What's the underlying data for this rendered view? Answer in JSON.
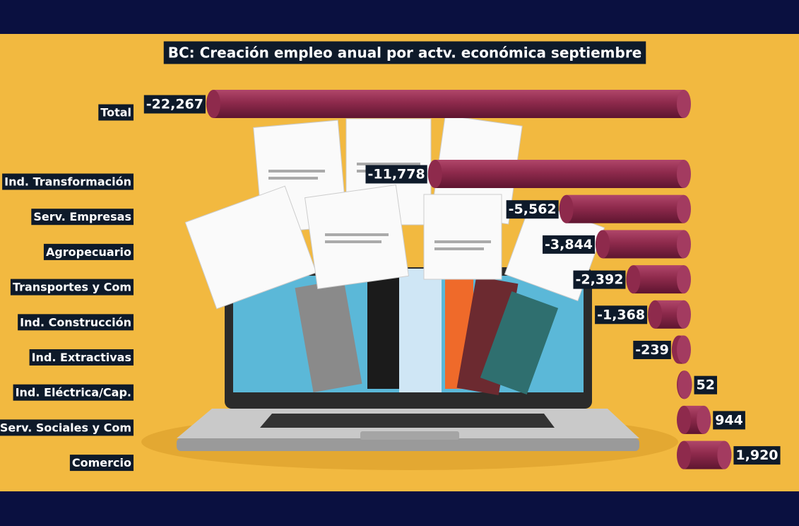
{
  "chart_data": {
    "type": "bar",
    "orientation": "horizontal",
    "title": "BC: Creación empleo anual por actv. económica septiembre",
    "categories": [
      "Total",
      "Ind. Transformación",
      "Serv. Empresas",
      "Agropecuario",
      "Transportes y Com",
      "Ind. Construcción",
      "Ind. Extractivas",
      "Ind. Eléctrica/Cap.",
      "Serv. Sociales y Com",
      "Comercio"
    ],
    "values": [
      -22267,
      -11778,
      -5562,
      -3844,
      -2392,
      -1368,
      -239,
      52,
      944,
      1920
    ],
    "value_labels": [
      "-22,267",
      "-11,778",
      "-5,562",
      "-3,844",
      "-2,392",
      "-1,368",
      "-239",
      "52",
      "944",
      "1,920"
    ],
    "color": "#8e2a4c"
  }
}
